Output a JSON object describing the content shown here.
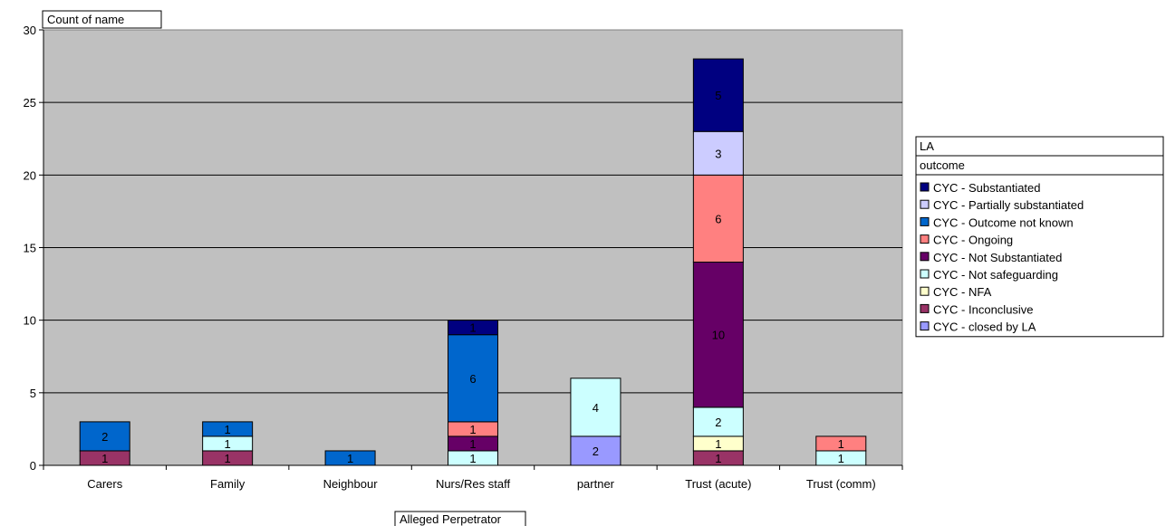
{
  "chart_data": {
    "type": "bar",
    "stacked": true,
    "field_label": "Count of name",
    "xlabel": "Alleged Perpetrator",
    "legend_title": [
      "LA",
      "outcome"
    ],
    "legend_position": "right",
    "ylim": [
      0,
      30
    ],
    "yticks": [
      0,
      5,
      10,
      15,
      20,
      25,
      30
    ],
    "grid": true,
    "categories": [
      "Carers",
      "Family",
      "Neighbour",
      "Nurs/Res staff",
      "partner",
      "Trust (acute)",
      "Trust (comm)"
    ],
    "series": [
      {
        "name": "CYC - closed by LA",
        "color": "#9999ff",
        "values": [
          0,
          0,
          0,
          0,
          2,
          0,
          0
        ]
      },
      {
        "name": "CYC - Inconclusive",
        "color": "#993366",
        "values": [
          1,
          1,
          0,
          0,
          0,
          1,
          0
        ]
      },
      {
        "name": "CYC - NFA",
        "color": "#ffffcc",
        "values": [
          0,
          0,
          0,
          0,
          0,
          1,
          0
        ]
      },
      {
        "name": "CYC - Not safeguarding",
        "color": "#ccffff",
        "values": [
          0,
          1,
          0,
          1,
          4,
          2,
          1
        ]
      },
      {
        "name": "CYC - Not Substantiated",
        "color": "#660066",
        "values": [
          0,
          0,
          0,
          1,
          0,
          10,
          0
        ]
      },
      {
        "name": "CYC - Ongoing",
        "color": "#ff8080",
        "values": [
          0,
          0,
          0,
          1,
          0,
          6,
          1
        ]
      },
      {
        "name": "CYC - Outcome not known",
        "color": "#0066cc",
        "values": [
          2,
          1,
          1,
          6,
          0,
          0,
          0
        ]
      },
      {
        "name": "CYC - Partially substantiated",
        "color": "#ccccff",
        "values": [
          0,
          0,
          0,
          0,
          0,
          3,
          0
        ]
      },
      {
        "name": "CYC - Substantiated",
        "color": "#000080",
        "values": [
          0,
          0,
          0,
          1,
          0,
          5,
          0
        ]
      }
    ],
    "legend_order": [
      8,
      7,
      6,
      5,
      4,
      3,
      2,
      1,
      0
    ],
    "plot_background": "#c0c0c0"
  }
}
